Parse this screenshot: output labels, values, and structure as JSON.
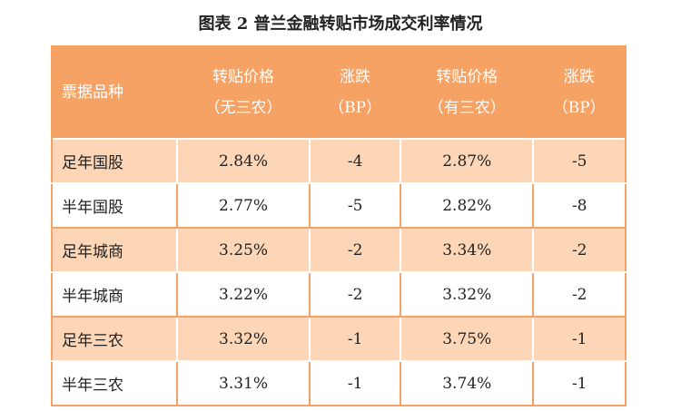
{
  "title": "图表 2 普兰金融转贴市场成交利率情况",
  "table": {
    "header": [
      [
        "票据品种"
      ],
      [
        "转贴价格",
        "（无三农）"
      ],
      [
        "涨跌",
        "（BP）"
      ],
      [
        "转贴价格",
        "（有三农）"
      ],
      [
        "涨跌",
        "（BP）"
      ]
    ],
    "rows": [
      [
        "足年国股",
        "2.84%",
        "-4",
        "2.87%",
        "-5"
      ],
      [
        "半年国股",
        "2.77%",
        "-5",
        "2.82%",
        "-8"
      ],
      [
        "足年城商",
        "3.25%",
        "-2",
        "3.34%",
        "-2"
      ],
      [
        "半年城商",
        "3.22%",
        "-2",
        "3.32%",
        "-2"
      ],
      [
        "足年三农",
        "3.32%",
        "-1",
        "3.75%",
        "-1"
      ],
      [
        "半年三农",
        "3.31%",
        "-1",
        "3.74%",
        "-1"
      ]
    ]
  }
}
